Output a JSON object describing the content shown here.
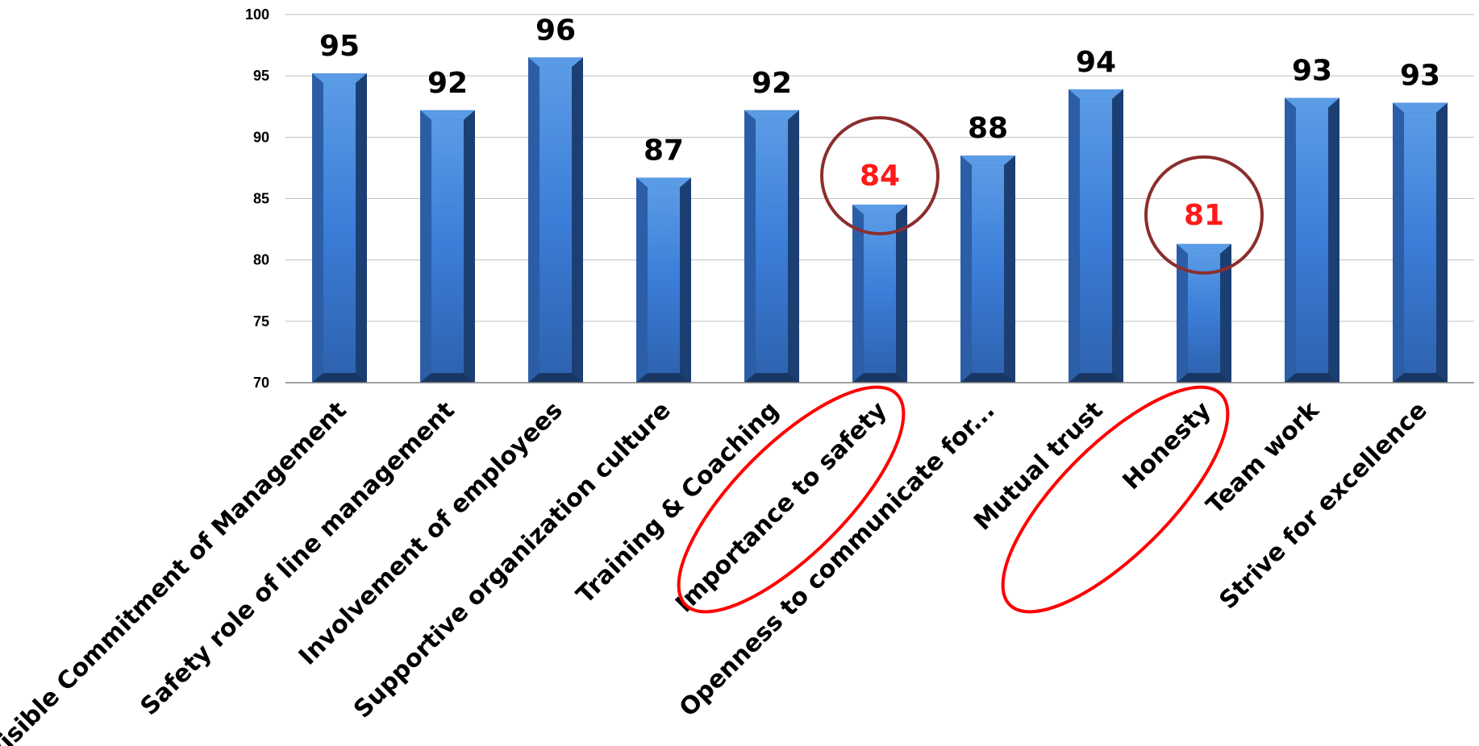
{
  "chart_data": {
    "type": "bar",
    "categories": [
      "Visible Commitment of Management",
      "Safety role of line management",
      "Involvement of employees",
      "Supportive organization culture",
      "Training & Coaching",
      "Importance to safety",
      "Openness to communicate for...",
      "Mutual trust",
      "Honesty",
      "Team work",
      "Strive for excellence"
    ],
    "values": [
      95.2,
      92.2,
      96.5,
      86.7,
      92.2,
      84.5,
      88.5,
      93.9,
      81.3,
      93.2,
      92.8
    ],
    "data_labels": [
      "95",
      "92",
      "96",
      "87",
      "92",
      "84",
      "88",
      "94",
      "81",
      "93",
      "93"
    ],
    "ylim": [
      70,
      100
    ],
    "yticks": [
      "70",
      "75",
      "80",
      "85",
      "90",
      "95",
      "100"
    ],
    "grid": true,
    "legend": "none",
    "highlighted": [
      "Importance to safety",
      "Honesty"
    ],
    "colors": {
      "bar_front": "#3b7dd8",
      "bar_side": "#1f4e8c",
      "bar_top": "#5a9be6",
      "label_normal": "#000000",
      "label_highlight": "#ff1a1a",
      "value_circle": "#8b2e2e",
      "category_ellipse": "#ff0000"
    }
  }
}
